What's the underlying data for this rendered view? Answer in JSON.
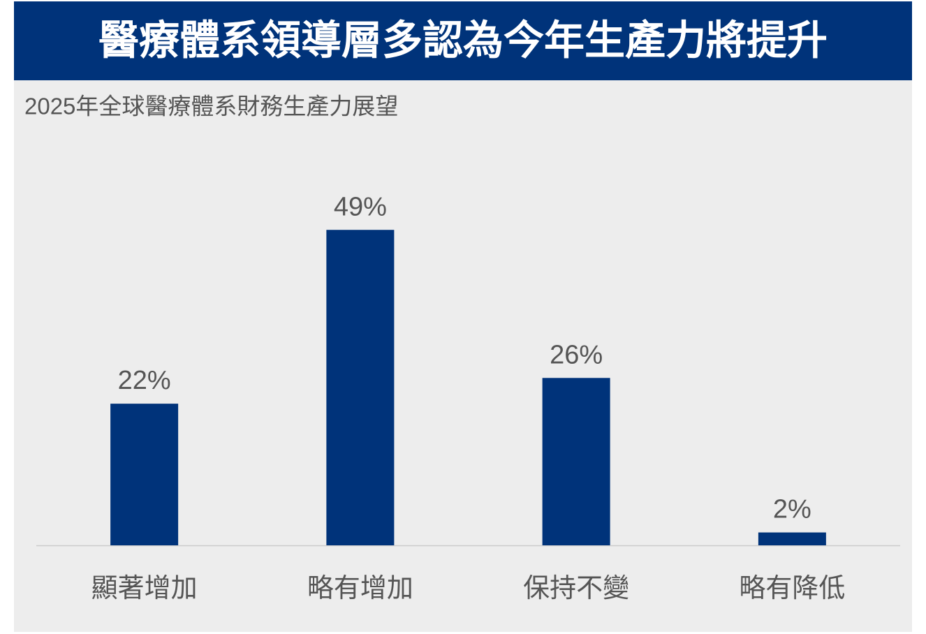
{
  "chart_data": {
    "type": "bar",
    "title": "醫療體系領導層多認為今年生產力將提升",
    "subtitle": "2025年全球醫療體系財務生產力展望",
    "categories": [
      "顯著增加",
      "略有增加",
      "保持不變",
      "略有降低"
    ],
    "values": [
      22,
      49,
      26,
      2
    ],
    "value_labels": [
      "22%",
      "49%",
      "26%",
      "2%"
    ],
    "color": "#00337a"
  }
}
